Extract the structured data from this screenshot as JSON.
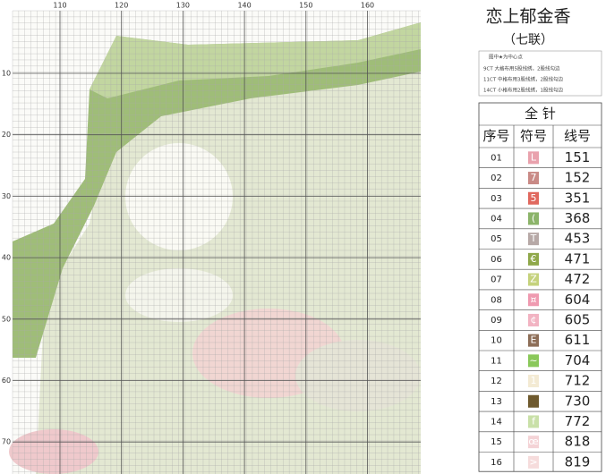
{
  "header": {
    "title": "恋上郁金香",
    "subtitle": "（七联）",
    "note": "图中★为中心点",
    "fabrics": [
      "9CT  大格布用5股线绣，2股线勾边",
      "11CT  中格布用3股线绣，2股线勾边",
      "14CT  小格布用2股线绣，1股线勾边"
    ]
  },
  "pattern": {
    "x_labels": [
      110,
      120,
      130,
      140,
      150,
      160
    ],
    "y_labels": [
      10,
      20,
      30,
      40,
      50,
      60,
      70
    ]
  },
  "table": {
    "title": "全 针",
    "columns": [
      "序号",
      "符号",
      "线号"
    ],
    "rows": [
      {
        "no": "01",
        "symbol": "L",
        "thread": "151",
        "color": "#e9a2ad"
      },
      {
        "no": "02",
        "symbol": "7",
        "thread": "152",
        "color": "#c98a86"
      },
      {
        "no": "03",
        "symbol": "5",
        "thread": "351",
        "color": "#e0685e"
      },
      {
        "no": "04",
        "symbol": "(",
        "thread": "368",
        "color": "#8cb46a"
      },
      {
        "no": "05",
        "symbol": "T",
        "thread": "453",
        "color": "#b7a9a7"
      },
      {
        "no": "06",
        "symbol": "€",
        "thread": "471",
        "color": "#8fa84a"
      },
      {
        "no": "07",
        "symbol": "Z",
        "thread": "472",
        "color": "#c5d27c"
      },
      {
        "no": "08",
        "symbol": "¤",
        "thread": "604",
        "color": "#ef9ab0"
      },
      {
        "no": "09",
        "symbol": "¢",
        "thread": "605",
        "color": "#f2b3c2"
      },
      {
        "no": "10",
        "symbol": "E",
        "thread": "611",
        "color": "#8d6e58"
      },
      {
        "no": "11",
        "symbol": "~",
        "thread": "704",
        "color": "#8ac85a"
      },
      {
        "no": "12",
        "symbol": "1",
        "thread": "712",
        "color": "#f3ead3"
      },
      {
        "no": "13",
        "thread": "730",
        "color": "#6f5a2e"
      },
      {
        "no": "14",
        "symbol": "f",
        "thread": "772",
        "color": "#c9e0a8"
      },
      {
        "no": "15",
        "symbol": "œ",
        "thread": "818",
        "color": "#f4d3d6"
      },
      {
        "no": "16",
        "symbol": ">",
        "thread": "819",
        "color": "#f6dcdc"
      }
    ]
  }
}
